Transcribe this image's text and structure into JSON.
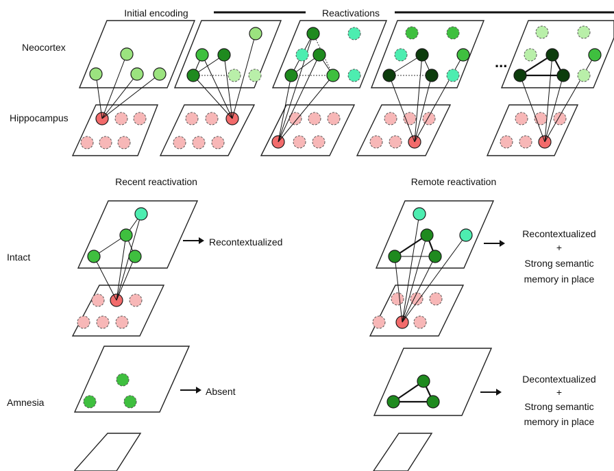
{
  "header": {
    "initial_encoding": "Initial encoding",
    "reactivations": "Reactivations",
    "ellipsis": "..."
  },
  "row_labels": {
    "neocortex": "Neocortex",
    "hippocampus": "Hippocampus",
    "intact": "Intact",
    "amnesia": "Amnesia"
  },
  "section_titles": {
    "recent": "Recent reactivation",
    "remote": "Remote reactivation"
  },
  "outcomes": {
    "recent_intact": [
      "Recontextualized"
    ],
    "remote_intact": [
      "Recontextualized",
      "+",
      "Strong semantic",
      "memory in place"
    ],
    "recent_amnesia": [
      "Absent"
    ],
    "remote_amnesia": [
      "Decontextualized",
      "+",
      "Strong semantic",
      "memory in place"
    ]
  },
  "colors": {
    "hippocampus_active": "#f26b6b",
    "hippocampus_inactive": "#f7b7b7",
    "neo_light": "#9be37f",
    "neo_mid": "#3fbf3f",
    "neo_dark": "#1f8a1f",
    "neo_darkest": "#0d3d0d",
    "neo_aqua": "#4dedb0",
    "neo_faded": "#b9efa9"
  }
}
